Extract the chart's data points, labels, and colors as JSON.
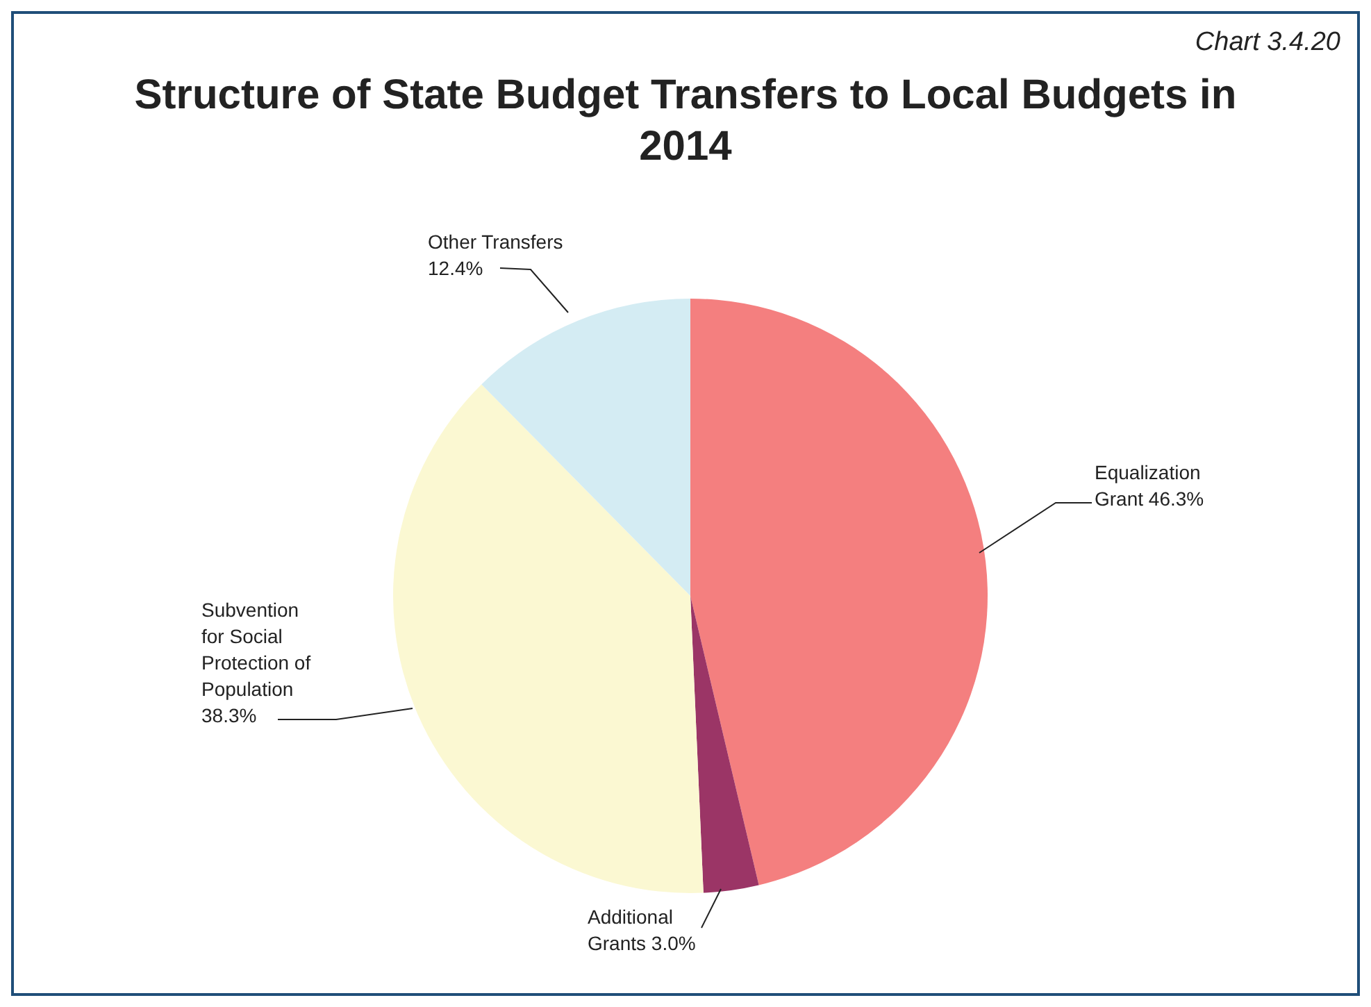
{
  "chart_data": {
    "type": "pie",
    "title": "Structure of State Budget Transfers to Local Budgets in 2014",
    "annotations": [
      "Chart 3.4.20"
    ],
    "categories": [
      "Equalization Grant",
      "Additional Grants",
      "Subvention for Social Protection of Population",
      "Other Transfers"
    ],
    "values": [
      46.3,
      3.0,
      38.3,
      12.4
    ],
    "colors": [
      "#f47f7f",
      "#9b3566",
      "#fbf8d2",
      "#d4ecf3"
    ],
    "value_labels": [
      "46.3%",
      "3.0%",
      "38.3%",
      "12.4%"
    ],
    "legend": false
  }
}
